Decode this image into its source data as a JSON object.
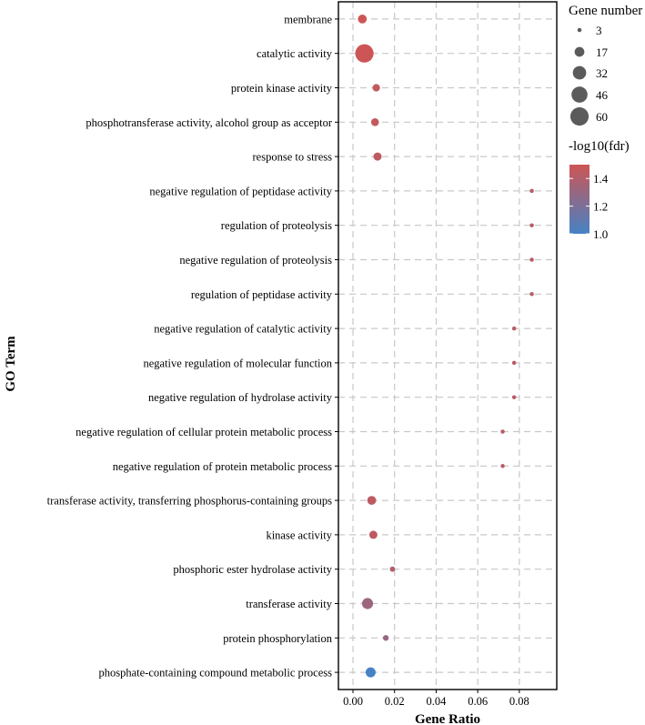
{
  "chart_data": {
    "type": "scatter",
    "xlabel": "Gene Ratio",
    "ylabel": "GO Term",
    "xlim": [
      -0.007,
      0.098
    ],
    "xticks": [
      0.0,
      0.02,
      0.04,
      0.06,
      0.08
    ],
    "xtick_labels": [
      "0.00",
      "0.02",
      "0.04",
      "0.06",
      "0.08"
    ],
    "grid": true,
    "points": [
      {
        "term": "membrane",
        "ratio": 0.0045,
        "count": 14,
        "neglog10fdr": 1.5
      },
      {
        "term": "catalytic activity",
        "ratio": 0.0055,
        "count": 60,
        "neglog10fdr": 1.5
      },
      {
        "term": "protein kinase activity",
        "ratio": 0.0112,
        "count": 10,
        "neglog10fdr": 1.46
      },
      {
        "term": "phosphotransferase activity, alcohol group as acceptor",
        "ratio": 0.0106,
        "count": 11,
        "neglog10fdr": 1.46
      },
      {
        "term": "response to stress",
        "ratio": 0.0118,
        "count": 12,
        "neglog10fdr": 1.44
      },
      {
        "term": "negative regulation of peptidase activity",
        "ratio": 0.086,
        "count": 3,
        "neglog10fdr": 1.42
      },
      {
        "term": "regulation of proteolysis",
        "ratio": 0.086,
        "count": 3,
        "neglog10fdr": 1.42
      },
      {
        "term": "negative regulation of proteolysis",
        "ratio": 0.086,
        "count": 3,
        "neglog10fdr": 1.42
      },
      {
        "term": "regulation of peptidase activity",
        "ratio": 0.086,
        "count": 3,
        "neglog10fdr": 1.42
      },
      {
        "term": "negative regulation of catalytic activity",
        "ratio": 0.0775,
        "count": 3,
        "neglog10fdr": 1.42
      },
      {
        "term": "negative regulation of molecular function",
        "ratio": 0.0775,
        "count": 3,
        "neglog10fdr": 1.42
      },
      {
        "term": "negative regulation of hydrolase activity",
        "ratio": 0.0775,
        "count": 3,
        "neglog10fdr": 1.42
      },
      {
        "term": "negative regulation of cellular protein metabolic process",
        "ratio": 0.072,
        "count": 3,
        "neglog10fdr": 1.42
      },
      {
        "term": "negative regulation of protein metabolic process",
        "ratio": 0.072,
        "count": 3,
        "neglog10fdr": 1.42
      },
      {
        "term": "transferase activity, transferring phosphorus-containing groups",
        "ratio": 0.009,
        "count": 14,
        "neglog10fdr": 1.44
      },
      {
        "term": "kinase activity",
        "ratio": 0.0098,
        "count": 12,
        "neglog10fdr": 1.44
      },
      {
        "term": "phosphoric ester hydrolase activity",
        "ratio": 0.019,
        "count": 5,
        "neglog10fdr": 1.4
      },
      {
        "term": "transferase activity",
        "ratio": 0.007,
        "count": 22,
        "neglog10fdr": 1.32
      },
      {
        "term": "protein phosphorylation",
        "ratio": 0.0158,
        "count": 6,
        "neglog10fdr": 1.3
      },
      {
        "term": "phosphate-containing compound metabolic process",
        "ratio": 0.0085,
        "count": 18,
        "neglog10fdr": 1.0
      }
    ],
    "size_legend": {
      "title": "Gene number",
      "values": [
        3,
        17,
        32,
        46,
        60
      ],
      "labels": [
        "3",
        "17",
        "32",
        "46",
        "60"
      ]
    },
    "color_legend": {
      "title": "-log10(fdr)",
      "min": 1.0,
      "max": 1.5,
      "ticks": [
        1.0,
        1.2,
        1.4
      ],
      "tick_labels": [
        "1.0",
        "1.2",
        "1.4"
      ],
      "low_color": "#4682C4",
      "high_color": "#CD5555"
    }
  }
}
